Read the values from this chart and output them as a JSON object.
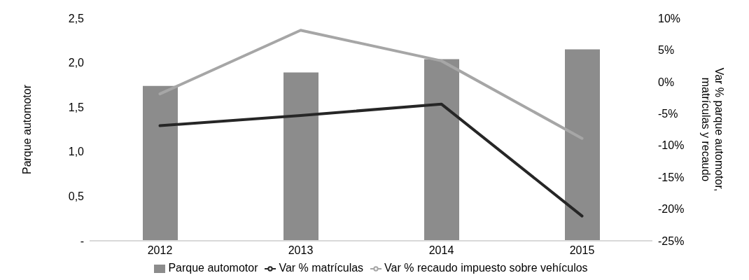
{
  "chart_data": {
    "type": "bar",
    "categories": [
      "2012",
      "2013",
      "2014",
      "2015"
    ],
    "series": [
      {
        "name": "Parque automotor",
        "color": "#8c8c8c",
        "values": [
          1.74,
          1.89,
          2.04,
          2.15
        ]
      },
      {
        "name": "Var % matrículas",
        "type": "line",
        "axis": "y2",
        "color": "#262626",
        "values": [
          -6.9,
          -5.3,
          -3.5,
          -21.1
        ]
      },
      {
        "name": "Var % recaudo impuesto sobre  vehículos",
        "type": "line",
        "axis": "y2",
        "color": "#a6a6a6",
        "values": [
          -1.9,
          8.1,
          3.3,
          -8.9
        ]
      }
    ],
    "ylabel": "Parque automotor",
    "y2label": "Var % parque automotor, matrículas y recaudo",
    "ylim": [
      0,
      2.5
    ],
    "yticks": [
      {
        "value": 0,
        "label": "-"
      },
      {
        "value": 0.5,
        "label": "0,5"
      },
      {
        "value": 1,
        "label": "1,0"
      },
      {
        "value": 1.5,
        "label": "1,5"
      },
      {
        "value": 2,
        "label": "2,0"
      },
      {
        "value": 2.5,
        "label": "2,5"
      }
    ],
    "y2lim": [
      -25,
      10
    ],
    "y2ticks": [
      {
        "value": -25,
        "label": "-25%"
      },
      {
        "value": -20,
        "label": "-20%"
      },
      {
        "value": -15,
        "label": "-15%"
      },
      {
        "value": -10,
        "label": "-10%"
      },
      {
        "value": -5,
        "label": "-5%"
      },
      {
        "value": 0,
        "label": "0%"
      },
      {
        "value": 5,
        "label": "5%"
      },
      {
        "value": 10,
        "label": "10%"
      }
    ],
    "grid": false,
    "legend": "bottom",
    "marker": "none",
    "line_style": "solid"
  }
}
